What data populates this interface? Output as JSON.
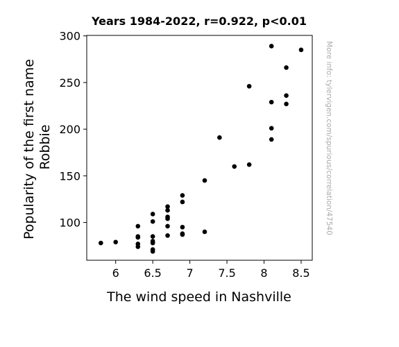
{
  "chart_data": {
    "type": "scatter",
    "title": "Years 1984-2022, r=0.922, p<0.01",
    "xlabel": "The wind speed in Nashville",
    "ylabel_lines": [
      "Popularity of the first name",
      "Robbie"
    ],
    "watermark": "More info: tylervigen.com/spurious/correlation/47540",
    "xlim": [
      5.61,
      8.65
    ],
    "ylim": [
      59.5,
      300.5
    ],
    "x_ticks": [
      6,
      6.5,
      7,
      7.5,
      8,
      8.5
    ],
    "x_tick_labels": [
      "6",
      "6.5",
      "7",
      "7.5",
      "8",
      "8.5"
    ],
    "y_ticks": [
      100,
      150,
      200,
      250,
      300
    ],
    "y_tick_labels": [
      "100",
      "150",
      "200",
      "250",
      "300"
    ],
    "grid": false,
    "marker_color": "#000000",
    "points": [
      {
        "x": 5.8,
        "y": 78
      },
      {
        "x": 6.0,
        "y": 79
      },
      {
        "x": 6.3,
        "y": 96
      },
      {
        "x": 6.3,
        "y": 85
      },
      {
        "x": 6.3,
        "y": 84
      },
      {
        "x": 6.3,
        "y": 77
      },
      {
        "x": 6.3,
        "y": 74
      },
      {
        "x": 6.5,
        "y": 109
      },
      {
        "x": 6.5,
        "y": 101
      },
      {
        "x": 6.5,
        "y": 85
      },
      {
        "x": 6.5,
        "y": 80
      },
      {
        "x": 6.5,
        "y": 78
      },
      {
        "x": 6.5,
        "y": 71
      },
      {
        "x": 6.5,
        "y": 69
      },
      {
        "x": 6.7,
        "y": 117
      },
      {
        "x": 6.7,
        "y": 113
      },
      {
        "x": 6.7,
        "y": 106
      },
      {
        "x": 6.7,
        "y": 104
      },
      {
        "x": 6.7,
        "y": 96
      },
      {
        "x": 6.7,
        "y": 86
      },
      {
        "x": 6.9,
        "y": 129
      },
      {
        "x": 6.9,
        "y": 122
      },
      {
        "x": 6.9,
        "y": 95
      },
      {
        "x": 6.9,
        "y": 88
      },
      {
        "x": 6.9,
        "y": 87
      },
      {
        "x": 7.2,
        "y": 145
      },
      {
        "x": 7.2,
        "y": 90
      },
      {
        "x": 7.4,
        "y": 191
      },
      {
        "x": 7.6,
        "y": 160
      },
      {
        "x": 7.8,
        "y": 246
      },
      {
        "x": 7.8,
        "y": 162
      },
      {
        "x": 8.1,
        "y": 289
      },
      {
        "x": 8.1,
        "y": 229
      },
      {
        "x": 8.1,
        "y": 201
      },
      {
        "x": 8.1,
        "y": 189
      },
      {
        "x": 8.3,
        "y": 266
      },
      {
        "x": 8.3,
        "y": 236
      },
      {
        "x": 8.3,
        "y": 227
      },
      {
        "x": 8.5,
        "y": 285
      }
    ]
  }
}
